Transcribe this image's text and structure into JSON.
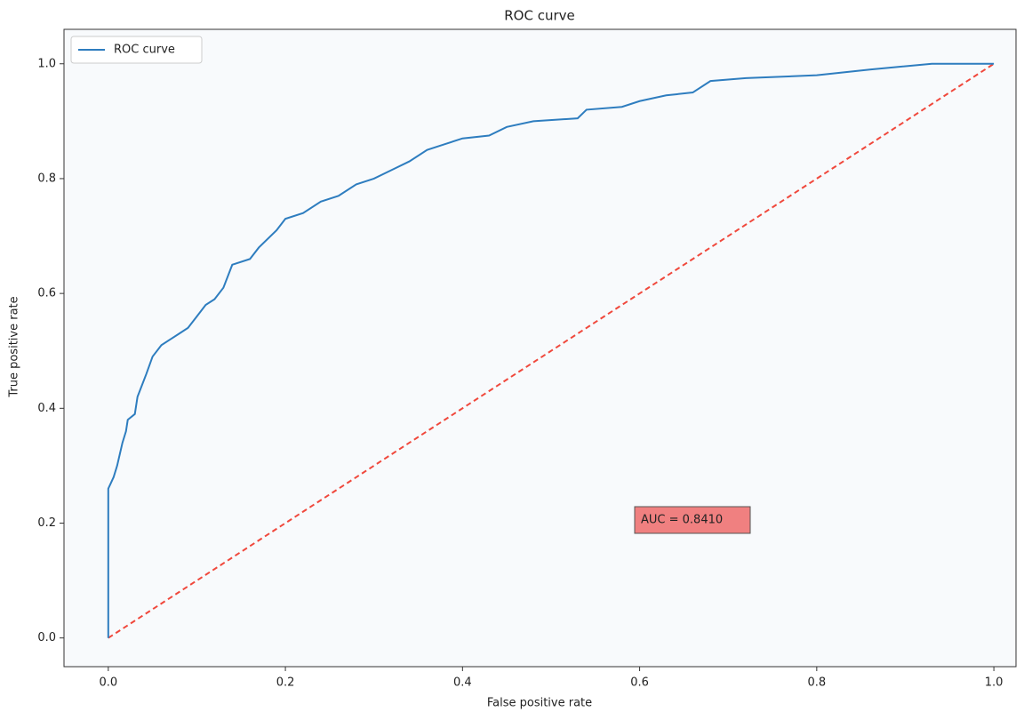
{
  "chart_data": {
    "type": "line",
    "title": "ROC curve",
    "x_label": "False positive rate",
    "y_label": "True positive rate",
    "x": [
      0,
      0,
      0.003,
      0.006,
      0.01,
      0.013,
      0.016,
      0.02,
      0.022,
      0.03,
      0.033,
      0.038,
      0.043,
      0.05,
      0.06,
      0.07,
      0.08,
      0.09,
      0.1,
      0.11,
      0.12,
      0.13,
      0.14,
      0.16,
      0.17,
      0.19,
      0.2,
      0.22,
      0.24,
      0.26,
      0.28,
      0.3,
      0.32,
      0.34,
      0.36,
      0.38,
      0.4,
      0.43,
      0.45,
      0.48,
      0.53,
      0.54,
      0.58,
      0.6,
      0.63,
      0.66,
      0.68,
      0.72,
      0.8,
      0.86,
      0.93,
      1.0
    ],
    "series": [
      {
        "name": "ROC curve",
        "color": "#2e7dbf",
        "values": [
          0,
          0.26,
          0.27,
          0.28,
          0.3,
          0.32,
          0.34,
          0.36,
          0.38,
          0.39,
          0.42,
          0.44,
          0.46,
          0.49,
          0.51,
          0.52,
          0.53,
          0.54,
          0.56,
          0.58,
          0.59,
          0.61,
          0.65,
          0.66,
          0.68,
          0.71,
          0.73,
          0.74,
          0.76,
          0.77,
          0.79,
          0.8,
          0.815,
          0.83,
          0.85,
          0.86,
          0.87,
          0.875,
          0.89,
          0.9,
          0.905,
          0.92,
          0.925,
          0.935,
          0.945,
          0.95,
          0.97,
          0.975,
          0.98,
          0.99,
          1.0,
          1.0
        ]
      }
    ],
    "reference_line": {
      "x": [
        0,
        1
      ],
      "y": [
        0,
        1
      ],
      "color": "#f0483c",
      "style": "dashed"
    },
    "annotation": "AUC = 0.8410",
    "xlim": [
      -0.05,
      1.025
    ],
    "ylim": [
      -0.05,
      1.06
    ],
    "xticks": [
      {
        "value": 0,
        "label": "0.0"
      },
      0.2,
      0.4,
      0.6,
      0.8,
      {
        "value": 1,
        "label": "1.0"
      }
    ],
    "yticks": [
      {
        "value": 0,
        "label": "0.0"
      },
      0.2,
      0.4,
      0.6,
      0.8,
      {
        "value": 1,
        "label": "1.0"
      }
    ],
    "grid": false,
    "legend": "upper left"
  }
}
